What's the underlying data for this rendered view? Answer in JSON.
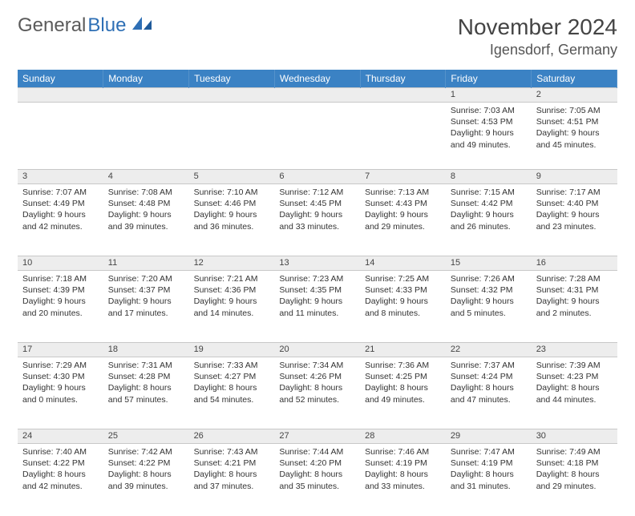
{
  "logo": {
    "part1": "General",
    "part2": "Blue"
  },
  "title": "November 2024",
  "location": "Igensdorf, Germany",
  "colors": {
    "header_bg": "#3b82c4",
    "header_text": "#ffffff",
    "daynum_bg": "#ededed",
    "border": "#c8c8c8",
    "text": "#333333",
    "logo_gray": "#5a5a5a",
    "logo_blue": "#2e6fb5"
  },
  "weekdays": [
    "Sunday",
    "Monday",
    "Tuesday",
    "Wednesday",
    "Thursday",
    "Friday",
    "Saturday"
  ],
  "weeks": [
    [
      {
        "day": "",
        "sunrise": "",
        "sunset": "",
        "daylight1": "",
        "daylight2": ""
      },
      {
        "day": "",
        "sunrise": "",
        "sunset": "",
        "daylight1": "",
        "daylight2": ""
      },
      {
        "day": "",
        "sunrise": "",
        "sunset": "",
        "daylight1": "",
        "daylight2": ""
      },
      {
        "day": "",
        "sunrise": "",
        "sunset": "",
        "daylight1": "",
        "daylight2": ""
      },
      {
        "day": "",
        "sunrise": "",
        "sunset": "",
        "daylight1": "",
        "daylight2": ""
      },
      {
        "day": "1",
        "sunrise": "Sunrise: 7:03 AM",
        "sunset": "Sunset: 4:53 PM",
        "daylight1": "Daylight: 9 hours",
        "daylight2": "and 49 minutes."
      },
      {
        "day": "2",
        "sunrise": "Sunrise: 7:05 AM",
        "sunset": "Sunset: 4:51 PM",
        "daylight1": "Daylight: 9 hours",
        "daylight2": "and 45 minutes."
      }
    ],
    [
      {
        "day": "3",
        "sunrise": "Sunrise: 7:07 AM",
        "sunset": "Sunset: 4:49 PM",
        "daylight1": "Daylight: 9 hours",
        "daylight2": "and 42 minutes."
      },
      {
        "day": "4",
        "sunrise": "Sunrise: 7:08 AM",
        "sunset": "Sunset: 4:48 PM",
        "daylight1": "Daylight: 9 hours",
        "daylight2": "and 39 minutes."
      },
      {
        "day": "5",
        "sunrise": "Sunrise: 7:10 AM",
        "sunset": "Sunset: 4:46 PM",
        "daylight1": "Daylight: 9 hours",
        "daylight2": "and 36 minutes."
      },
      {
        "day": "6",
        "sunrise": "Sunrise: 7:12 AM",
        "sunset": "Sunset: 4:45 PM",
        "daylight1": "Daylight: 9 hours",
        "daylight2": "and 33 minutes."
      },
      {
        "day": "7",
        "sunrise": "Sunrise: 7:13 AM",
        "sunset": "Sunset: 4:43 PM",
        "daylight1": "Daylight: 9 hours",
        "daylight2": "and 29 minutes."
      },
      {
        "day": "8",
        "sunrise": "Sunrise: 7:15 AM",
        "sunset": "Sunset: 4:42 PM",
        "daylight1": "Daylight: 9 hours",
        "daylight2": "and 26 minutes."
      },
      {
        "day": "9",
        "sunrise": "Sunrise: 7:17 AM",
        "sunset": "Sunset: 4:40 PM",
        "daylight1": "Daylight: 9 hours",
        "daylight2": "and 23 minutes."
      }
    ],
    [
      {
        "day": "10",
        "sunrise": "Sunrise: 7:18 AM",
        "sunset": "Sunset: 4:39 PM",
        "daylight1": "Daylight: 9 hours",
        "daylight2": "and 20 minutes."
      },
      {
        "day": "11",
        "sunrise": "Sunrise: 7:20 AM",
        "sunset": "Sunset: 4:37 PM",
        "daylight1": "Daylight: 9 hours",
        "daylight2": "and 17 minutes."
      },
      {
        "day": "12",
        "sunrise": "Sunrise: 7:21 AM",
        "sunset": "Sunset: 4:36 PM",
        "daylight1": "Daylight: 9 hours",
        "daylight2": "and 14 minutes."
      },
      {
        "day": "13",
        "sunrise": "Sunrise: 7:23 AM",
        "sunset": "Sunset: 4:35 PM",
        "daylight1": "Daylight: 9 hours",
        "daylight2": "and 11 minutes."
      },
      {
        "day": "14",
        "sunrise": "Sunrise: 7:25 AM",
        "sunset": "Sunset: 4:33 PM",
        "daylight1": "Daylight: 9 hours",
        "daylight2": "and 8 minutes."
      },
      {
        "day": "15",
        "sunrise": "Sunrise: 7:26 AM",
        "sunset": "Sunset: 4:32 PM",
        "daylight1": "Daylight: 9 hours",
        "daylight2": "and 5 minutes."
      },
      {
        "day": "16",
        "sunrise": "Sunrise: 7:28 AM",
        "sunset": "Sunset: 4:31 PM",
        "daylight1": "Daylight: 9 hours",
        "daylight2": "and 2 minutes."
      }
    ],
    [
      {
        "day": "17",
        "sunrise": "Sunrise: 7:29 AM",
        "sunset": "Sunset: 4:30 PM",
        "daylight1": "Daylight: 9 hours",
        "daylight2": "and 0 minutes."
      },
      {
        "day": "18",
        "sunrise": "Sunrise: 7:31 AM",
        "sunset": "Sunset: 4:28 PM",
        "daylight1": "Daylight: 8 hours",
        "daylight2": "and 57 minutes."
      },
      {
        "day": "19",
        "sunrise": "Sunrise: 7:33 AM",
        "sunset": "Sunset: 4:27 PM",
        "daylight1": "Daylight: 8 hours",
        "daylight2": "and 54 minutes."
      },
      {
        "day": "20",
        "sunrise": "Sunrise: 7:34 AM",
        "sunset": "Sunset: 4:26 PM",
        "daylight1": "Daylight: 8 hours",
        "daylight2": "and 52 minutes."
      },
      {
        "day": "21",
        "sunrise": "Sunrise: 7:36 AM",
        "sunset": "Sunset: 4:25 PM",
        "daylight1": "Daylight: 8 hours",
        "daylight2": "and 49 minutes."
      },
      {
        "day": "22",
        "sunrise": "Sunrise: 7:37 AM",
        "sunset": "Sunset: 4:24 PM",
        "daylight1": "Daylight: 8 hours",
        "daylight2": "and 47 minutes."
      },
      {
        "day": "23",
        "sunrise": "Sunrise: 7:39 AM",
        "sunset": "Sunset: 4:23 PM",
        "daylight1": "Daylight: 8 hours",
        "daylight2": "and 44 minutes."
      }
    ],
    [
      {
        "day": "24",
        "sunrise": "Sunrise: 7:40 AM",
        "sunset": "Sunset: 4:22 PM",
        "daylight1": "Daylight: 8 hours",
        "daylight2": "and 42 minutes."
      },
      {
        "day": "25",
        "sunrise": "Sunrise: 7:42 AM",
        "sunset": "Sunset: 4:22 PM",
        "daylight1": "Daylight: 8 hours",
        "daylight2": "and 39 minutes."
      },
      {
        "day": "26",
        "sunrise": "Sunrise: 7:43 AM",
        "sunset": "Sunset: 4:21 PM",
        "daylight1": "Daylight: 8 hours",
        "daylight2": "and 37 minutes."
      },
      {
        "day": "27",
        "sunrise": "Sunrise: 7:44 AM",
        "sunset": "Sunset: 4:20 PM",
        "daylight1": "Daylight: 8 hours",
        "daylight2": "and 35 minutes."
      },
      {
        "day": "28",
        "sunrise": "Sunrise: 7:46 AM",
        "sunset": "Sunset: 4:19 PM",
        "daylight1": "Daylight: 8 hours",
        "daylight2": "and 33 minutes."
      },
      {
        "day": "29",
        "sunrise": "Sunrise: 7:47 AM",
        "sunset": "Sunset: 4:19 PM",
        "daylight1": "Daylight: 8 hours",
        "daylight2": "and 31 minutes."
      },
      {
        "day": "30",
        "sunrise": "Sunrise: 7:49 AM",
        "sunset": "Sunset: 4:18 PM",
        "daylight1": "Daylight: 8 hours",
        "daylight2": "and 29 minutes."
      }
    ]
  ]
}
